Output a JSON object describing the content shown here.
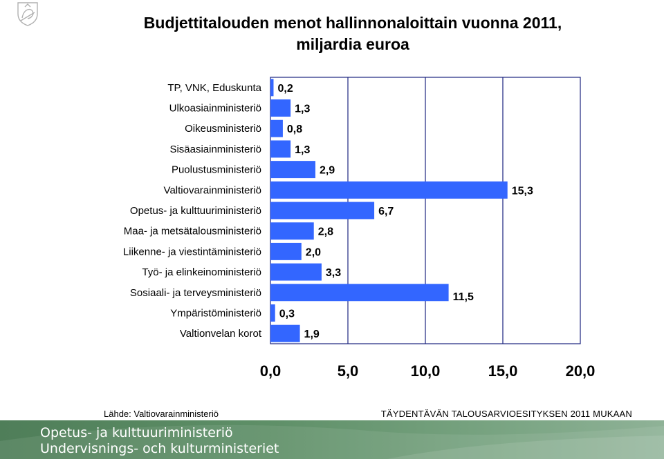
{
  "chart_data": {
    "type": "bar",
    "orientation": "horizontal",
    "title_line1": "Budjettitalouden menot hallinnonaloittain vuonna 2011,",
    "title_line2": "miljardia euroa",
    "categories": [
      "TP, VNK, Eduskunta",
      "Ulkoasiainministeriö",
      "Oikeusministeriö",
      "Sisäasiainministeriö",
      "Puolustusministeriö",
      "Valtiovarainministeriö",
      "Opetus- ja kulttuuriministeriö",
      "Maa- ja metsätalousministeriö",
      "Liikenne- ja viestintäministeriö",
      "Työ- ja elinkeinoministeriö",
      "Sosiaali- ja terveysministeriö",
      "Ympäristöministeriö",
      "Valtionvelan korot"
    ],
    "values": [
      0.2,
      1.3,
      0.8,
      1.3,
      2.9,
      15.3,
      6.7,
      2.8,
      2.0,
      3.3,
      11.5,
      0.3,
      1.9
    ],
    "value_labels": [
      "0,2",
      "1,3",
      "0,8",
      "1,3",
      "2,9",
      "15,3",
      "6,7",
      "2,8",
      "2,0",
      "3,3",
      "11,5",
      "0,3",
      "1,9"
    ],
    "xlim": [
      0,
      20
    ],
    "ticks": [
      0,
      5,
      10,
      15,
      20
    ],
    "tick_labels": [
      "0,0",
      "5,0",
      "10,0",
      "15,0",
      "20,0"
    ],
    "grid": true,
    "bar_color": "#3366ff",
    "grid_color": "#1a237e"
  },
  "footer": {
    "source": "Lähde: Valtiovarainministeriö",
    "proposal": "TÄYDENTÄVÄN TALOUSARVIOESITYKSEN 2011 MUKAAN",
    "ministry_fi": "Opetus- ja kulttuuriministeriö",
    "ministry_sv": "Undervisnings- och kulturministeriet"
  },
  "logo": {
    "icon": "lion-coat-of-arms-icon"
  }
}
